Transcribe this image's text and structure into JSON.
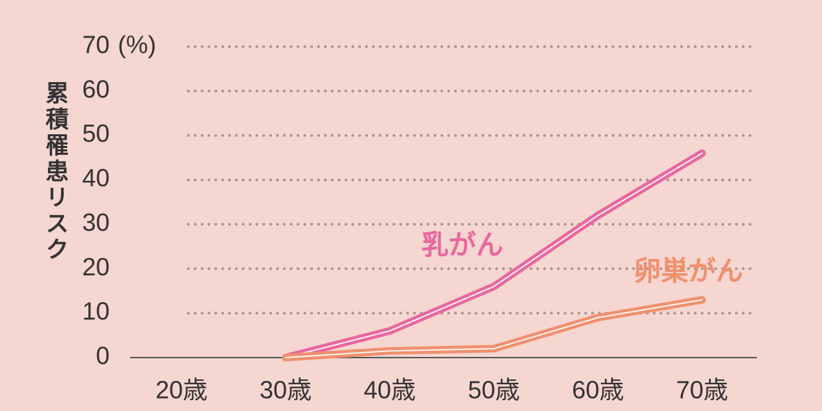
{
  "chart_data": {
    "type": "line",
    "y_label": "累積罹患リスク",
    "unit": "(%)",
    "categories": [
      "20歳",
      "30歳",
      "40歳",
      "50歳",
      "60歳",
      "70歳"
    ],
    "series": [
      {
        "name": "乳がん",
        "color": "#e8679e",
        "values": [
          null,
          0,
          6,
          16,
          32,
          46
        ]
      },
      {
        "name": "卵巣がん",
        "color": "#f0906e",
        "values": [
          null,
          0,
          1.5,
          2,
          9,
          13
        ]
      }
    ],
    "ylim": [
      0,
      70
    ],
    "yticks": [
      0,
      10,
      20,
      30,
      40,
      50,
      60,
      70
    ],
    "grid": true
  }
}
